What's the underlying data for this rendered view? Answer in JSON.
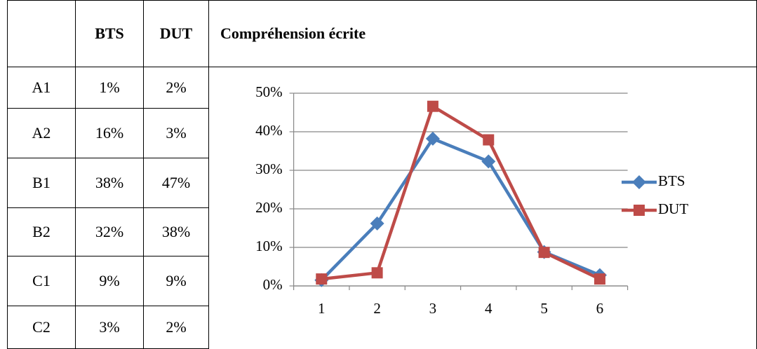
{
  "table": {
    "header": [
      "BTS",
      "DUT"
    ],
    "rows": [
      [
        "A1",
        "1%",
        "2%"
      ],
      [
        "A2",
        "16%",
        "3%"
      ],
      [
        "B1",
        "38%",
        "47%"
      ],
      [
        "B2",
        "32%",
        "38%"
      ],
      [
        "C1",
        "9%",
        "9%"
      ],
      [
        "C2",
        "3%",
        "2%"
      ]
    ]
  },
  "chart_data": {
    "type": "line",
    "title": "Compréhension écrite",
    "categories": [
      "1",
      "2",
      "3",
      "4",
      "5",
      "6"
    ],
    "series": [
      {
        "name": "BTS",
        "color": "#4a7ebb",
        "marker": "diamond",
        "values": [
          1.5,
          16.2,
          38.2,
          32.3,
          8.8,
          2.8
        ]
      },
      {
        "name": "DUT",
        "color": "#be4b48",
        "marker": "square",
        "values": [
          1.8,
          3.4,
          46.6,
          37.9,
          8.7,
          1.8
        ]
      }
    ],
    "ylim": [
      0,
      50
    ],
    "yticks": [
      {
        "value": 0,
        "label": "0%"
      },
      {
        "value": 10,
        "label": "10%"
      },
      {
        "value": 20,
        "label": "20%"
      },
      {
        "value": 30,
        "label": "30%"
      },
      {
        "value": 40,
        "label": "40%"
      },
      {
        "value": 50,
        "label": "50%"
      }
    ],
    "grid": true,
    "legend": "right"
  }
}
